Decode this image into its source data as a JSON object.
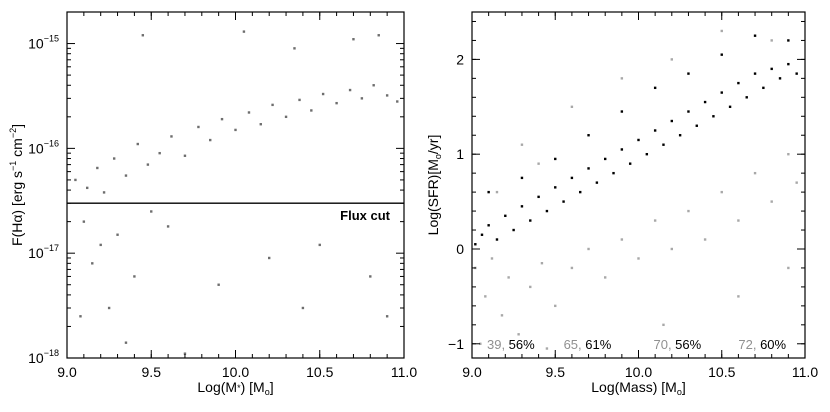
{
  "chart_data": [
    {
      "type": "scatter",
      "xlabel": "Log(M*) [Mo]",
      "ylabel": "F(Hα) [erg s−1 cm−2]",
      "xlim": [
        9.0,
        11.0
      ],
      "ylim": [
        1e-18,
        2e-15
      ],
      "y_scale": "log",
      "x_ticks": [
        "9.0",
        "9.5",
        "10.0",
        "10.5",
        "11.0"
      ],
      "y_ticks": [
        {
          "value": 1e-18,
          "base": "10",
          "exp": "−18"
        },
        {
          "value": 1e-17,
          "base": "10",
          "exp": "−17"
        },
        {
          "value": 1e-16,
          "base": "10",
          "exp": "−16"
        },
        {
          "value": 1e-15,
          "base": "10",
          "exp": "−15"
        }
      ],
      "colors": {
        "points": "#6e6e6e",
        "axes": "#000000"
      },
      "flux_cut": {
        "label": "Flux cut",
        "y": 3e-17
      },
      "series": [
        {
          "color": "#6e6e6e",
          "points": [
            [
              9.05,
              5e-17
            ],
            [
              9.12,
              4.2e-17
            ],
            [
              9.18,
              6.5e-17
            ],
            [
              9.22,
              3.8e-17
            ],
            [
              9.28,
              8e-17
            ],
            [
              9.35,
              5.5e-17
            ],
            [
              9.42,
              1.1e-16
            ],
            [
              9.48,
              7e-17
            ],
            [
              9.55,
              9e-17
            ],
            [
              9.62,
              1.3e-16
            ],
            [
              9.7,
              8.5e-17
            ],
            [
              9.78,
              1.6e-16
            ],
            [
              9.85,
              1.2e-16
            ],
            [
              9.92,
              1.9e-16
            ],
            [
              10.0,
              1.5e-16
            ],
            [
              10.08,
              2.2e-16
            ],
            [
              10.15,
              1.7e-16
            ],
            [
              10.22,
              2.6e-16
            ],
            [
              10.3,
              2e-16
            ],
            [
              10.38,
              2.9e-16
            ],
            [
              10.45,
              2.3e-16
            ],
            [
              10.52,
              3.3e-16
            ],
            [
              10.6,
              2.7e-16
            ],
            [
              10.68,
              3.6e-16
            ],
            [
              10.75,
              3e-16
            ],
            [
              10.82,
              4e-16
            ],
            [
              10.9,
              3.2e-16
            ],
            [
              10.96,
              2.8e-16
            ],
            [
              9.1,
              2e-17
            ],
            [
              9.3,
              1.5e-17
            ],
            [
              9.5,
              2.5e-17
            ],
            [
              9.2,
              1.2e-17
            ],
            [
              9.15,
              8e-18
            ],
            [
              9.4,
              6e-18
            ],
            [
              9.6,
              1.8e-17
            ],
            [
              9.25,
              3e-18
            ],
            [
              9.08,
              2.5e-18
            ],
            [
              9.35,
              1.4e-18
            ],
            [
              9.9,
              5e-18
            ],
            [
              10.2,
              9e-18
            ],
            [
              10.5,
              1.2e-17
            ],
            [
              10.8,
              6e-18
            ],
            [
              10.4,
              3e-18
            ],
            [
              9.7,
              1.1e-18
            ],
            [
              10.9,
              2.5e-18
            ],
            [
              9.45,
              1.2e-15
            ],
            [
              10.05,
              1.3e-15
            ],
            [
              10.7,
              1.1e-15
            ],
            [
              10.85,
              1.2e-15
            ],
            [
              10.35,
              9e-16
            ]
          ]
        }
      ]
    },
    {
      "type": "scatter",
      "xlabel": "Log(Mass) [Mo]",
      "ylabel": "Log(SFR)[Mo/yr]",
      "xlim": [
        9.0,
        11.0
      ],
      "ylim": [
        -1.15,
        2.5
      ],
      "x_ticks": [
        "9.0",
        "9.5",
        "10.0",
        "10.5",
        "11.0"
      ],
      "y_ticks": [
        "−1",
        "0",
        "1",
        "2"
      ],
      "colors": {
        "primary": "#000000",
        "secondary": "#a8a8a8"
      },
      "series": [
        {
          "color": "#a8a8a8",
          "points": [
            [
              9.02,
              -0.2
            ],
            [
              9.08,
              -0.5
            ],
            [
              9.12,
              -0.1
            ],
            [
              9.18,
              -0.7
            ],
            [
              9.22,
              -0.3
            ],
            [
              9.28,
              -0.9
            ],
            [
              9.35,
              -0.4
            ],
            [
              9.42,
              -0.15
            ],
            [
              9.5,
              -0.6
            ],
            [
              9.6,
              -0.2
            ],
            [
              9.7,
              0.0
            ],
            [
              9.8,
              -0.3
            ],
            [
              9.9,
              0.1
            ],
            [
              10.0,
              -0.1
            ],
            [
              10.1,
              0.3
            ],
            [
              10.2,
              0.0
            ],
            [
              10.3,
              0.4
            ],
            [
              10.4,
              0.1
            ],
            [
              10.5,
              0.6
            ],
            [
              10.6,
              0.3
            ],
            [
              10.7,
              0.8
            ],
            [
              10.8,
              0.5
            ],
            [
              10.9,
              1.0
            ],
            [
              10.95,
              0.7
            ],
            [
              9.3,
              1.1
            ],
            [
              9.6,
              1.5
            ],
            [
              9.9,
              1.8
            ],
            [
              10.2,
              2.0
            ],
            [
              10.5,
              2.3
            ],
            [
              10.8,
              2.2
            ],
            [
              9.15,
              0.6
            ],
            [
              9.4,
              0.9
            ],
            [
              9.05,
              -1.0
            ],
            [
              9.45,
              -1.05
            ],
            [
              10.15,
              -0.8
            ],
            [
              10.6,
              -0.5
            ],
            [
              10.9,
              -0.2
            ]
          ]
        },
        {
          "color": "#000000",
          "points": [
            [
              9.02,
              0.05
            ],
            [
              9.06,
              0.15
            ],
            [
              9.1,
              0.25
            ],
            [
              9.15,
              0.1
            ],
            [
              9.2,
              0.35
            ],
            [
              9.25,
              0.2
            ],
            [
              9.3,
              0.45
            ],
            [
              9.35,
              0.3
            ],
            [
              9.4,
              0.55
            ],
            [
              9.45,
              0.4
            ],
            [
              9.5,
              0.65
            ],
            [
              9.55,
              0.5
            ],
            [
              9.6,
              0.75
            ],
            [
              9.65,
              0.6
            ],
            [
              9.7,
              0.85
            ],
            [
              9.75,
              0.7
            ],
            [
              9.8,
              0.95
            ],
            [
              9.85,
              0.8
            ],
            [
              9.9,
              1.05
            ],
            [
              9.95,
              0.9
            ],
            [
              10.0,
              1.15
            ],
            [
              10.05,
              1.0
            ],
            [
              10.1,
              1.25
            ],
            [
              10.15,
              1.1
            ],
            [
              10.2,
              1.35
            ],
            [
              10.25,
              1.2
            ],
            [
              10.3,
              1.45
            ],
            [
              10.35,
              1.3
            ],
            [
              10.4,
              1.55
            ],
            [
              10.45,
              1.4
            ],
            [
              10.5,
              1.65
            ],
            [
              10.55,
              1.5
            ],
            [
              10.6,
              1.75
            ],
            [
              10.65,
              1.6
            ],
            [
              10.7,
              1.85
            ],
            [
              10.75,
              1.7
            ],
            [
              10.8,
              1.9
            ],
            [
              10.85,
              1.8
            ],
            [
              10.9,
              1.95
            ],
            [
              10.95,
              1.85
            ],
            [
              9.1,
              0.6
            ],
            [
              9.3,
              0.75
            ],
            [
              9.5,
              0.95
            ],
            [
              9.7,
              1.2
            ],
            [
              9.9,
              1.45
            ],
            [
              10.1,
              1.7
            ],
            [
              10.3,
              1.85
            ],
            [
              10.5,
              2.05
            ],
            [
              10.7,
              2.25
            ],
            [
              10.9,
              2.2
            ]
          ]
        }
      ],
      "annotations": [
        {
          "grey": "39,",
          "black": "56%",
          "x": 9.09
        },
        {
          "grey": "65,",
          "black": "61%",
          "x": 9.55
        },
        {
          "grey": "70,",
          "black": "56%",
          "x": 10.09
        },
        {
          "grey": "72,",
          "black": "60%",
          "x": 10.6
        }
      ],
      "annotation_y": -1.0
    }
  ]
}
